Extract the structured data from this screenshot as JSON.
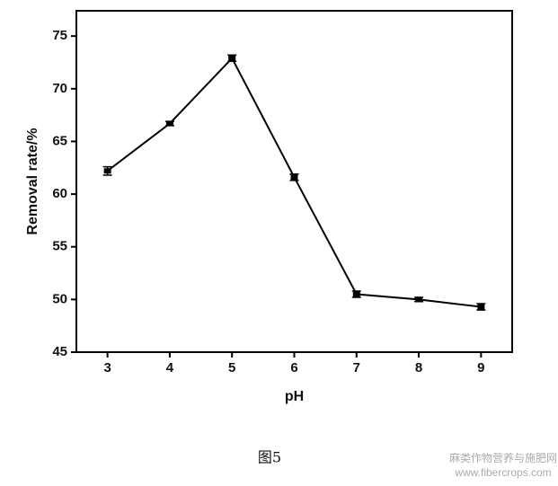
{
  "chart_data": {
    "type": "line",
    "x_label": "pH",
    "y_label": "Removal rate/%",
    "x": [
      3,
      4,
      5,
      6,
      7,
      8,
      9
    ],
    "series": [
      {
        "color": "#000000",
        "values": [
          62.2,
          66.7,
          72.9,
          61.6,
          50.5,
          50.0,
          49.3
        ],
        "errors": [
          0.4,
          0.2,
          0.3,
          0.3,
          0.3,
          0.2,
          0.3
        ]
      }
    ],
    "xlim": [
      2.5,
      9.5
    ],
    "xticks": [
      3,
      4,
      5,
      6,
      7,
      8,
      9
    ],
    "ylim": [
      45,
      77.4
    ],
    "yticks": [
      45,
      50,
      55,
      60,
      65,
      70,
      75
    ]
  },
  "caption": "图5",
  "watermark": [
    "麻类作物营养与施肥网",
    "www.fibercrops.com"
  ]
}
